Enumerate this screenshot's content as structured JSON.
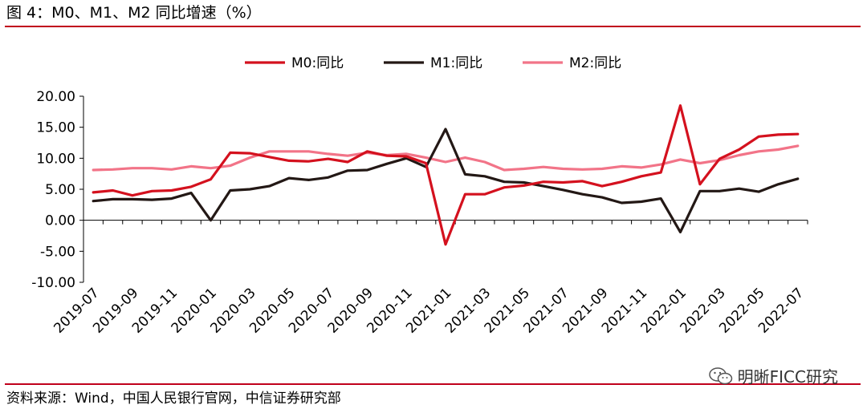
{
  "figure": {
    "title": "图 4：M0、M1、M2 同比增速（%）",
    "source": "资料来源：Wind，中国人民银行官网，中信证券研究部",
    "watermark": "明晰FICC研究",
    "watermark_icon": "wechat-icon"
  },
  "colors": {
    "rule": "#c0001b",
    "M0": "#d4111e",
    "M1": "#231815",
    "M2": "#f27488"
  },
  "chart_data": {
    "type": "line",
    "title": "",
    "xlabel": "",
    "ylabel": "",
    "ylim": [
      -10,
      20
    ],
    "yticks": [
      "20.00",
      "15.00",
      "10.00",
      "5.00",
      "0.00",
      "-5.00",
      "-10.00"
    ],
    "ytick_values": [
      20,
      15,
      10,
      5,
      0,
      -5,
      -10
    ],
    "grid": false,
    "legend_position": "top-center",
    "x": [
      "2019-07",
      "2019-08",
      "2019-09",
      "2019-10",
      "2019-11",
      "2019-12",
      "2020-01",
      "2020-02",
      "2020-03",
      "2020-04",
      "2020-05",
      "2020-06",
      "2020-07",
      "2020-08",
      "2020-09",
      "2020-10",
      "2020-11",
      "2020-12",
      "2021-01",
      "2021-02",
      "2021-03",
      "2021-04",
      "2021-05",
      "2021-06",
      "2021-07",
      "2021-08",
      "2021-09",
      "2021-10",
      "2021-11",
      "2021-12",
      "2022-01",
      "2022-02",
      "2022-03",
      "2022-04",
      "2022-05",
      "2022-06",
      "2022-07"
    ],
    "x_tick_labels": [
      "2019-07",
      "2019-09",
      "2019-11",
      "2020-01",
      "2020-03",
      "2020-05",
      "2020-07",
      "2020-09",
      "2020-11",
      "2021-01",
      "2021-03",
      "2021-05",
      "2021-07",
      "2021-09",
      "2021-11",
      "2022-01",
      "2022-03",
      "2022-05",
      "2022-07"
    ],
    "series": [
      {
        "name": "M0:同比",
        "key": "M0",
        "values": [
          4.5,
          4.8,
          4.0,
          4.7,
          4.8,
          5.4,
          6.6,
          10.9,
          10.8,
          10.2,
          9.6,
          9.5,
          9.9,
          9.4,
          11.1,
          10.4,
          10.3,
          9.2,
          -3.9,
          4.2,
          4.2,
          5.3,
          5.6,
          6.2,
          6.1,
          6.3,
          5.5,
          6.2,
          7.1,
          7.7,
          18.5,
          5.8,
          9.9,
          11.4,
          13.5,
          13.8,
          13.9
        ]
      },
      {
        "name": "M1:同比",
        "key": "M1",
        "values": [
          3.1,
          3.4,
          3.4,
          3.3,
          3.5,
          4.4,
          0.0,
          4.8,
          5.0,
          5.5,
          6.8,
          6.5,
          6.9,
          8.0,
          8.1,
          9.1,
          10.0,
          8.6,
          14.7,
          7.4,
          7.1,
          6.2,
          6.1,
          5.5,
          4.9,
          4.2,
          3.7,
          2.8,
          3.0,
          3.5,
          -1.9,
          4.7,
          4.7,
          5.1,
          4.6,
          5.8,
          6.7
        ]
      },
      {
        "name": "M2:同比",
        "key": "M2",
        "values": [
          8.1,
          8.2,
          8.4,
          8.4,
          8.2,
          8.7,
          8.4,
          8.8,
          10.1,
          11.1,
          11.1,
          11.1,
          10.7,
          10.4,
          10.9,
          10.5,
          10.7,
          10.1,
          9.4,
          10.1,
          9.4,
          8.1,
          8.3,
          8.6,
          8.3,
          8.2,
          8.3,
          8.7,
          8.5,
          9.0,
          9.8,
          9.2,
          9.7,
          10.5,
          11.1,
          11.4,
          12.0
        ]
      }
    ]
  }
}
